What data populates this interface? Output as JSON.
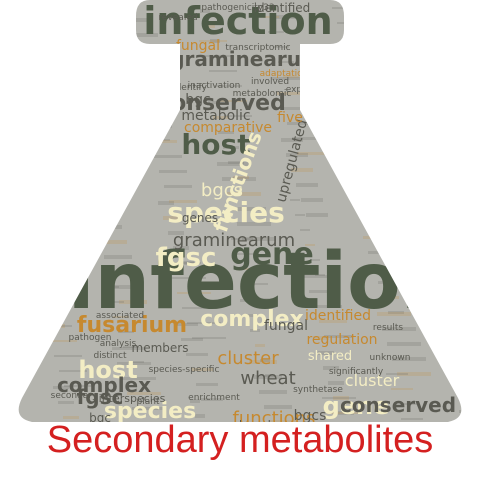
{
  "caption": "Secondary metabolites",
  "colors": {
    "flask_fill": "#b4b4ae",
    "caption": "#d42020",
    "word_dark": "#5a5a52",
    "word_green": "#4f5c48",
    "word_orange": "#c6892f",
    "word_cream": "#f3edc4"
  },
  "words": [
    {
      "text": "infection",
      "size": 78,
      "color": "#4f5c48"
    },
    {
      "text": "infection",
      "size": 38,
      "color": "#4f5c48"
    },
    {
      "text": "gene",
      "size": 30,
      "color": "#4f5c48"
    },
    {
      "text": "gene",
      "size": 24,
      "color": "#f3edc4"
    },
    {
      "text": "host",
      "size": 28,
      "color": "#4f5c48"
    },
    {
      "text": "host",
      "size": 24,
      "color": "#f3edc4"
    },
    {
      "text": "species",
      "size": 28,
      "color": "#f3edc4"
    },
    {
      "text": "species",
      "size": 22,
      "color": "#f3edc4"
    },
    {
      "text": "fgsc",
      "size": 26,
      "color": "#f3edc4"
    },
    {
      "text": "fgsc",
      "size": 20,
      "color": "#5a5a52"
    },
    {
      "text": "graminearum",
      "size": 20,
      "color": "#5a5a52"
    },
    {
      "text": "graminearum",
      "size": 18,
      "color": "#5a5a52"
    },
    {
      "text": "fusarium",
      "size": 22,
      "color": "#c6892f"
    },
    {
      "text": "fusarium",
      "size": 18,
      "color": "#5a5a52"
    },
    {
      "text": "complex",
      "size": 22,
      "color": "#f3edc4"
    },
    {
      "text": "complex",
      "size": 20,
      "color": "#5a5a52"
    },
    {
      "text": "conserved",
      "size": 22,
      "color": "#5a5a52"
    },
    {
      "text": "conserved",
      "size": 20,
      "color": "#5a5a52"
    },
    {
      "text": "cluster",
      "size": 18,
      "color": "#c6892f"
    },
    {
      "text": "cluster",
      "size": 16,
      "color": "#f3edc4"
    },
    {
      "text": "comparative",
      "size": 14,
      "color": "#c6892f"
    },
    {
      "text": "comparative",
      "size": 14,
      "color": "#5a5a52"
    },
    {
      "text": "functions",
      "size": 20,
      "color": "#f3edc4"
    },
    {
      "text": "functions",
      "size": 18,
      "color": "#c6892f"
    },
    {
      "text": "bgcs",
      "size": 18,
      "color": "#f3edc4"
    },
    {
      "text": "bgcs",
      "size": 14,
      "color": "#5a5a52"
    },
    {
      "text": "bgc",
      "size": 14,
      "color": "#5a5a52"
    },
    {
      "text": "bgc",
      "size": 12,
      "color": "#5a5a52"
    },
    {
      "text": "fungal",
      "size": 14,
      "color": "#c6892f"
    },
    {
      "text": "fungal",
      "size": 14,
      "color": "#5a5a52"
    },
    {
      "text": "regulation",
      "size": 14,
      "color": "#c6892f"
    },
    {
      "text": "regulation",
      "size": 12,
      "color": "#5a5a52"
    },
    {
      "text": "wheat",
      "size": 18,
      "color": "#5a5a52"
    },
    {
      "text": "identified",
      "size": 14,
      "color": "#c6892f"
    },
    {
      "text": "identified",
      "size": 12,
      "color": "#5a5a52"
    },
    {
      "text": "upregulated",
      "size": 14,
      "color": "#5a5a52"
    },
    {
      "text": "upregulated",
      "size": 12,
      "color": "#5a5a52"
    },
    {
      "text": "metabolic",
      "size": 14,
      "color": "#5a5a52"
    },
    {
      "text": "shared",
      "size": 13,
      "color": "#f3edc4"
    },
    {
      "text": "shared",
      "size": 11,
      "color": "#5a5a52"
    },
    {
      "text": "members",
      "size": 12,
      "color": "#5a5a52"
    },
    {
      "text": "interspecies",
      "size": 11,
      "color": "#5a5a52"
    },
    {
      "text": "five",
      "size": 14,
      "color": "#c6892f"
    },
    {
      "text": "genes",
      "size": 12,
      "color": "#5a5a52"
    },
    {
      "text": "pathogenicity33",
      "size": 9,
      "color": "#5a5a52"
    },
    {
      "text": "revealed",
      "size": 9,
      "color": "#5a5a52"
    },
    {
      "text": "transcriptomic",
      "size": 9,
      "color": "#5a5a52"
    },
    {
      "text": "adaptation",
      "size": 9,
      "color": "#c6892f"
    },
    {
      "text": "involved",
      "size": 9,
      "color": "#5a5a52"
    },
    {
      "text": "identify",
      "size": 9,
      "color": "#5a5a52"
    },
    {
      "text": "metabolomic",
      "size": 9,
      "color": "#5a5a52"
    },
    {
      "text": "inactivation",
      "size": 9,
      "color": "#5a5a52"
    },
    {
      "text": "showing",
      "size": 9,
      "color": "#5a5a52"
    },
    {
      "text": "species-specific",
      "size": 9,
      "color": "#5a5a52"
    },
    {
      "text": "significantly",
      "size": 9,
      "color": "#5a5a52"
    },
    {
      "text": "unknown",
      "size": 9,
      "color": "#5a5a52"
    },
    {
      "text": "synthetase",
      "size": 9,
      "color": "#5a5a52"
    },
    {
      "text": "enrichment",
      "size": 9,
      "color": "#5a5a52"
    },
    {
      "text": "secondary",
      "size": 9,
      "color": "#5a5a52"
    },
    {
      "text": "plant",
      "size": 9,
      "color": "#5a5a52"
    },
    {
      "text": "production",
      "size": 9,
      "color": "#5a5a52"
    },
    {
      "text": "expression",
      "size": 9,
      "color": "#5a5a52"
    },
    {
      "text": "pathogen",
      "size": 9,
      "color": "#5a5a52"
    },
    {
      "text": "distinct",
      "size": 9,
      "color": "#5a5a52"
    },
    {
      "text": "results",
      "size": 9,
      "color": "#5a5a52"
    },
    {
      "text": "analysis",
      "size": 9,
      "color": "#5a5a52"
    },
    {
      "text": "associated",
      "size": 9,
      "color": "#5a5a52"
    }
  ]
}
